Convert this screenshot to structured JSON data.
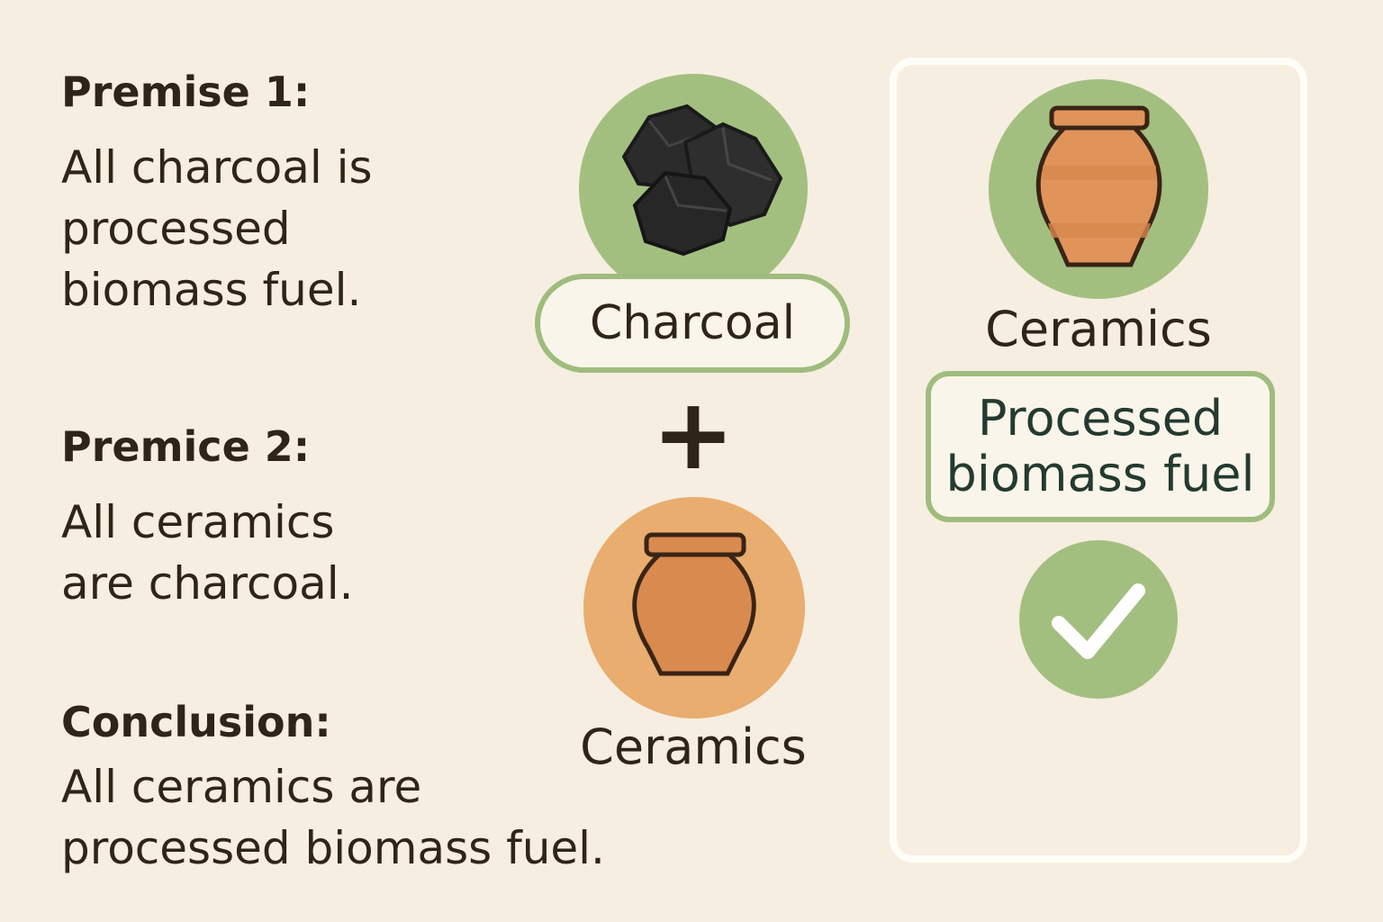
{
  "premise1": {
    "heading": "Premise 1:",
    "lines": [
      "All charcoal is",
      "processed",
      "biomass fuel."
    ]
  },
  "premise2": {
    "heading": "Premice 2:",
    "lines": [
      "All ceramics",
      "are charcoal."
    ]
  },
  "conclusion": {
    "heading": "Conclusion:",
    "lines": [
      "All ceramics are",
      "processed biomass fuel."
    ]
  },
  "center": {
    "charcoal_label": "Charcoal",
    "operator": "+",
    "ceramics_label": "Ceramics"
  },
  "result_panel": {
    "ceramics_label": "Ceramics",
    "category_lines": [
      "Processed",
      "biomass fuel"
    ],
    "status_icon": "checkmark-icon"
  },
  "colors": {
    "background": "#f6eee0",
    "green_circle": "#a3bf80",
    "orange_circle": "#e8ad6f",
    "jar_fill": "#d98a4e",
    "charcoal": "#2b2b2b",
    "text": "#2e2417"
  }
}
